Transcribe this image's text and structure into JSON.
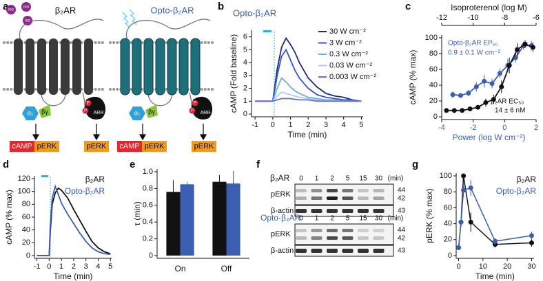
{
  "panel_labels": [
    "a",
    "b",
    "c",
    "d",
    "e",
    "f",
    "g"
  ],
  "diagram": {
    "receptors": [
      "β₂AR",
      "Opto-β₂AR"
    ],
    "ligand": "iso",
    "g_alpha": "αₛ",
    "g_beta_gamma": "βγ",
    "phospho": "P",
    "arrestin": "ARR",
    "outputs": [
      "cAMP",
      "pERK",
      "pERK"
    ]
  },
  "blot": {
    "groups": [
      "β₂AR",
      "Opto-β₂AR"
    ],
    "times": [
      0,
      1,
      2,
      5,
      15,
      30
    ],
    "time_unit": "(min)",
    "rows": [
      "pERK",
      "β-actin"
    ],
    "mw": [
      44,
      42,
      43
    ]
  },
  "chart_data": [
    {
      "type": "line",
      "title": "Opto-β₂AR",
      "xlabel": "Time (min)",
      "ylabel": "cAMP (Fold baseline)",
      "xlim": [
        -1.2,
        5.1
      ],
      "ylim": [
        0,
        6.3
      ],
      "xticks": [
        -1,
        0,
        1,
        2,
        3,
        4,
        5
      ],
      "yticks": [
        0,
        1,
        2,
        3,
        4,
        5,
        6
      ],
      "legend": "upper right",
      "x": [
        -1,
        -0.5,
        0,
        0.25,
        0.5,
        0.75,
        1,
        1.25,
        1.5,
        2,
        2.5,
        3,
        3.5,
        4,
        4.5,
        5
      ],
      "series": [
        {
          "name": "30 W cm⁻²",
          "color": "#1a2a80",
          "values": [
            1,
            1,
            1,
            3.5,
            5.2,
            5.9,
            5.4,
            4.8,
            4.0,
            2.8,
            2.1,
            1.6,
            1.4,
            1.3,
            1.1,
            1
          ]
        },
        {
          "name": "3 W cm⁻²",
          "color": "#2f55c8",
          "values": [
            1,
            1,
            1,
            3,
            4.5,
            5,
            4.2,
            3.4,
            2.8,
            2,
            1.5,
            1.3,
            1.2,
            1.1,
            1.1,
            1
          ]
        },
        {
          "name": "0.3 W cm⁻²",
          "color": "#6aaee0",
          "values": [
            1,
            1,
            1,
            2,
            2.8,
            2.5,
            2.1,
            1.8,
            1.6,
            1.3,
            1.2,
            1.1,
            1.1,
            1,
            1,
            1
          ]
        },
        {
          "name": "0.03 W cm⁻²",
          "color": "#b4c8ec",
          "values": [
            1,
            1,
            1,
            1.4,
            1.7,
            1.6,
            1.5,
            1.4,
            1.3,
            1.2,
            1.1,
            1,
            1,
            1,
            1,
            1
          ]
        },
        {
          "name": "0.003 W cm⁻²",
          "color": "#6a6ae0",
          "values": [
            1,
            1,
            1,
            1.1,
            1.2,
            1.2,
            1.2,
            1.15,
            1.1,
            1.1,
            1,
            1,
            1,
            1,
            1,
            1
          ]
        }
      ]
    },
    {
      "type": "scatter",
      "xlabel": "Power (log W cm⁻²)",
      "x2label": "Isoproterenol (log M)",
      "ylabel": "cAMP (% max)",
      "xlim": [
        -4,
        2
      ],
      "x2lim": [
        -12,
        -6
      ],
      "ylim": [
        0,
        100
      ],
      "xticks": [
        -4,
        -2,
        0,
        2
      ],
      "x2ticks": [
        -12,
        -10,
        -8,
        -6
      ],
      "yticks": [
        0,
        20,
        40,
        60,
        80,
        100
      ],
      "annotations": [
        {
          "text": "Opto-β₂AR EP₅₀",
          "color": "#3a5fb0"
        },
        {
          "text": "0.9 ± 0.1 W cm⁻²",
          "color": "#3a5fb0"
        },
        {
          "text": "β₂AR EC₅₀",
          "color": "#111111"
        },
        {
          "text": "14 ± 6 nM",
          "color": "#111111"
        }
      ],
      "series": [
        {
          "color": "#3a5fb0",
          "x": [
            -3.3,
            -2.8,
            -2.3,
            -1.8,
            -1.3,
            -0.8,
            -0.3,
            0.2,
            0.7,
            1.2,
            1.7
          ],
          "values": [
            28,
            27,
            30,
            38,
            45,
            42,
            55,
            65,
            75,
            90,
            90
          ],
          "errors": [
            4,
            3,
            4,
            6,
            8,
            6,
            6,
            8,
            6,
            5,
            6
          ]
        },
        {
          "color": "#111111",
          "axis": "x2",
          "x": [
            -11.7,
            -11.2,
            -10.7,
            -10.2,
            -9.7,
            -9.2,
            -8.7,
            -8.2,
            -7.7,
            -7.2,
            -6.7,
            -6.2
          ],
          "values": [
            8,
            8,
            8,
            10,
            12,
            18,
            22,
            38,
            65,
            85,
            92,
            88
          ],
          "errors": [
            2,
            2,
            2,
            3,
            3,
            5,
            6,
            8,
            10,
            8,
            5,
            6
          ]
        }
      ]
    },
    {
      "type": "line",
      "xlabel": "Time (min)",
      "ylabel": "cAMP (% max)",
      "xlim": [
        -1.2,
        5.1
      ],
      "ylim": [
        0,
        120
      ],
      "xticks": [
        -1,
        0,
        1,
        2,
        3,
        4,
        5
      ],
      "yticks": [
        0,
        20,
        40,
        60,
        80,
        100,
        120
      ],
      "legend": "upper right",
      "x": [
        -1,
        -0.5,
        0,
        0.1,
        0.25,
        0.5,
        0.75,
        1,
        1.5,
        2,
        2.5,
        3,
        3.5,
        4,
        4.5,
        5
      ],
      "series": [
        {
          "name": "β₂AR",
          "color": "#111111",
          "values": [
            0,
            0,
            0,
            40,
            80,
            98,
            105,
            102,
            90,
            72,
            55,
            38,
            22,
            12,
            6,
            3
          ]
        },
        {
          "name": "Opto-β₂AR",
          "color": "#3a5fb0",
          "values": [
            0,
            0,
            0,
            50,
            90,
            108,
            95,
            82,
            65,
            50,
            35,
            22,
            12,
            6,
            3,
            2
          ]
        }
      ]
    },
    {
      "type": "bar",
      "ylabel": "τ (min)",
      "ylim": [
        0,
        1
      ],
      "yticks": [
        0,
        0.2,
        0.4,
        0.6,
        0.8,
        {
          "value": 1,
          "label": "1.0"
        }
      ],
      "categories": [
        "On",
        "Off"
      ],
      "series": [
        {
          "color": "#111111",
          "values": [
            0.76,
            0.88
          ],
          "errors": [
            0.14,
            0.08
          ]
        },
        {
          "color": "#3a5fb0",
          "values": [
            0.85,
            0.86
          ],
          "errors": [
            0.03,
            0.15
          ]
        }
      ]
    },
    {
      "type": "line",
      "markers": true,
      "xlabel": "Time (min)",
      "ylabel": "pERK (% max)",
      "xlim": [
        -1,
        31
      ],
      "ylim": [
        0,
        100
      ],
      "xticks": [
        0,
        10,
        20,
        30
      ],
      "yticks": [
        0,
        20,
        40,
        60,
        80,
        100
      ],
      "legend": "upper right",
      "x": [
        0,
        1,
        2,
        5,
        15,
        30
      ],
      "series": [
        {
          "name": "β₂AR",
          "color": "#111111",
          "values": [
            10,
            42,
            100,
            42,
            14,
            16
          ],
          "errors": [
            3,
            6,
            3,
            12,
            4,
            5
          ]
        },
        {
          "name": "Opto-β₂AR",
          "color": "#3a5fb0",
          "values": [
            10,
            42,
            82,
            85,
            18,
            25
          ],
          "errors": [
            3,
            6,
            8,
            10,
            4,
            5
          ]
        }
      ]
    }
  ]
}
